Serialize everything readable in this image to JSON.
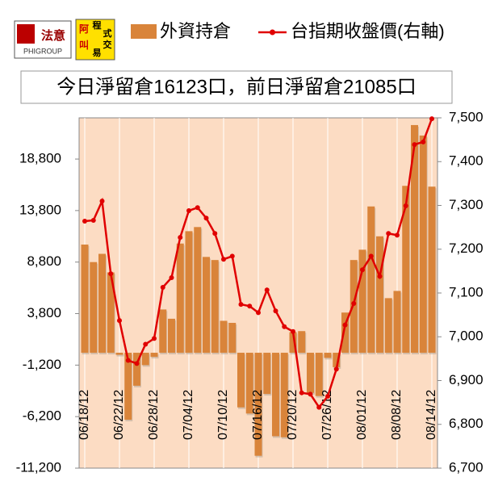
{
  "logos": {
    "left": [
      "法意",
      "PHIGROUP"
    ],
    "right": [
      "阿",
      "叫",
      "程",
      "式",
      "交",
      "易"
    ]
  },
  "chart_data": {
    "type": "bar_line",
    "title": "今日淨留倉16123口，前日淨留倉21085口",
    "categories": [
      "06/18/12",
      null,
      null,
      null,
      "06/22/12",
      null,
      null,
      null,
      "06/28/12",
      null,
      null,
      null,
      "07/04/12",
      null,
      null,
      null,
      "07/10/12",
      null,
      null,
      null,
      "07/16/12",
      null,
      null,
      null,
      "07/20/12",
      null,
      null,
      null,
      "07/26/12",
      null,
      null,
      null,
      "08/01/12",
      null,
      null,
      null,
      "08/08/12",
      null,
      null,
      null,
      "08/14/12"
    ],
    "series": [
      {
        "name": "外資持倉",
        "color": "#d9843a",
        "values": [
          10500,
          8800,
          9600,
          7800,
          -200,
          -6500,
          -3200,
          -1200,
          -400,
          4200,
          3300,
          10600,
          11800,
          12200,
          9300,
          9000,
          3100,
          2900,
          -5300,
          -5900,
          -10000,
          -4000,
          -8100,
          -8200,
          2000,
          2100,
          -3900,
          -4200,
          -500,
          -1400,
          3900,
          9000,
          10000,
          14200,
          11300,
          5300,
          6000,
          16200,
          22100,
          21085,
          16123
        ]
      },
      {
        "name": "台指期收盤價(右軸)",
        "color": "#e00000",
        "axis": "y2",
        "values": [
          7264,
          7266,
          7310,
          7144,
          7037,
          6946,
          6939,
          6983,
          6996,
          7113,
          7135,
          7227,
          7288,
          7295,
          7271,
          7236,
          7177,
          7184,
          7074,
          7070,
          7055,
          7107,
          7059,
          7023,
          7012,
          6872,
          6869,
          6839,
          6864,
          6926,
          7027,
          7076,
          7153,
          7184,
          7138,
          7236,
          7232,
          7299,
          7439,
          7445,
          7498
        ]
      }
    ],
    "ylim": [
      -11200,
      22800
    ],
    "yticks": [
      {
        "value": -11200,
        "label": "-11,200"
      },
      {
        "value": -6200,
        "label": "-6,200"
      },
      {
        "value": -1200,
        "label": "-1,200"
      },
      {
        "value": 3800,
        "label": "3,800"
      },
      {
        "value": 8800,
        "label": "8,800"
      },
      {
        "value": 13800,
        "label": "13,800"
      },
      {
        "value": 18800,
        "label": "18,800"
      }
    ],
    "y2lim": [
      6700,
      7500
    ],
    "y2ticks": [
      {
        "value": 6700,
        "label": "6,700"
      },
      {
        "value": 6800,
        "label": "6,800"
      },
      {
        "value": 6900,
        "label": "6,900"
      },
      {
        "value": 7000,
        "label": "7,000"
      },
      {
        "value": 7100,
        "label": "7,100"
      },
      {
        "value": 7200,
        "label": "7,200"
      },
      {
        "value": 7300,
        "label": "7,300"
      },
      {
        "value": 7400,
        "label": "7,400"
      },
      {
        "value": 7500,
        "label": "7,500"
      }
    ]
  }
}
